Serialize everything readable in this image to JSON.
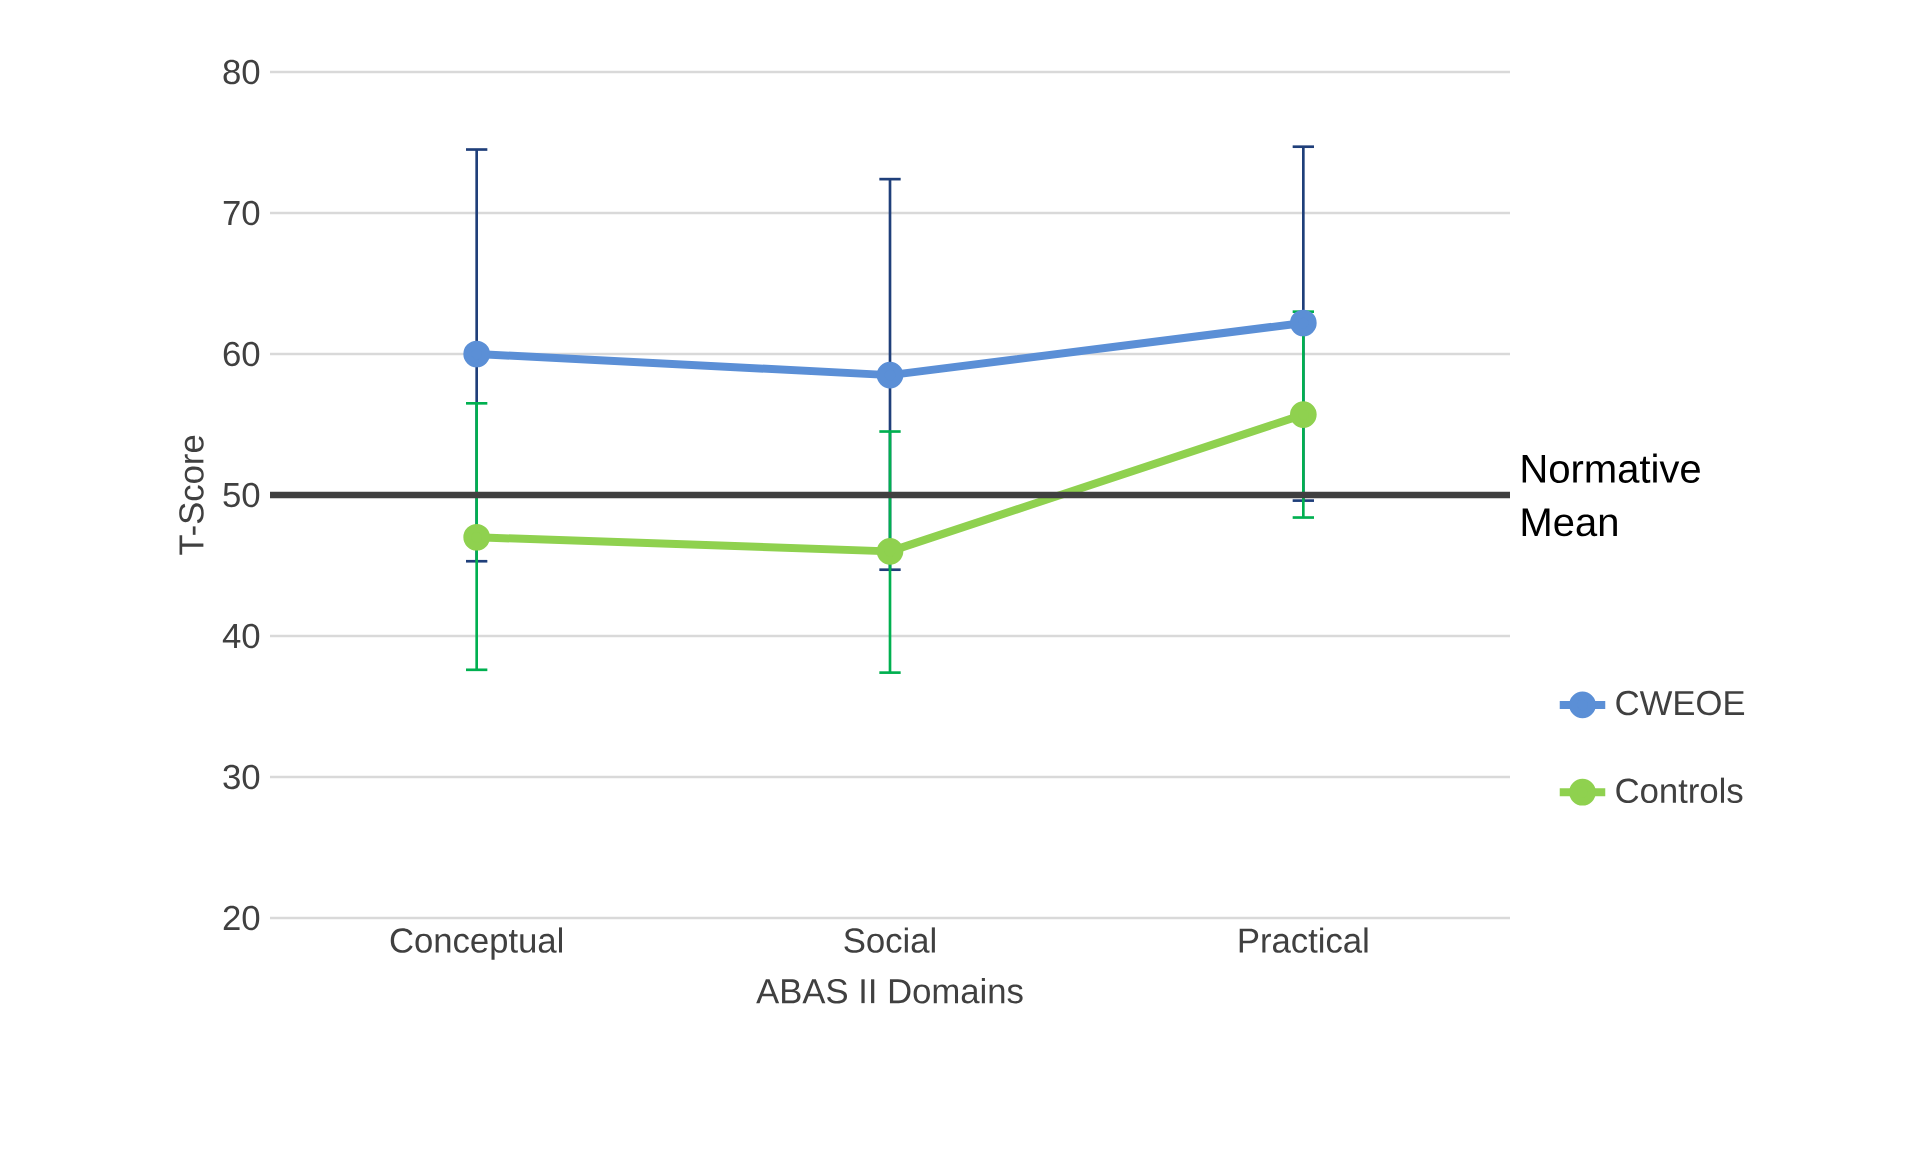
{
  "chart_data": {
    "type": "line",
    "xlabel": "ABAS II Domains",
    "ylabel": "T-Score",
    "categories": [
      "Conceptual",
      "Social",
      "Practical"
    ],
    "series": [
      {
        "name": "CWEOE",
        "color": "#5b8fd6",
        "values": [
          60.0,
          58.5,
          62.2
        ],
        "errors": [
          [
            45.3,
            74.5
          ],
          [
            44.7,
            72.4
          ],
          [
            49.6,
            74.7
          ]
        ]
      },
      {
        "name": "Controls",
        "color": "#8fd14f",
        "values": [
          47.0,
          46.0,
          55.7
        ],
        "errors": [
          [
            37.6,
            56.5
          ],
          [
            37.4,
            54.5
          ],
          [
            48.4,
            63.0
          ]
        ]
      }
    ],
    "ylim": [
      20,
      80
    ],
    "yticks": [
      20,
      30,
      40,
      50,
      60,
      70,
      80
    ],
    "grid": "y",
    "legend": "right",
    "marker": "circle",
    "line_style": "solid",
    "ref_lines": [
      {
        "axis": "y",
        "value": 50,
        "label": "Normative Mean",
        "color": "#404040"
      }
    ]
  }
}
